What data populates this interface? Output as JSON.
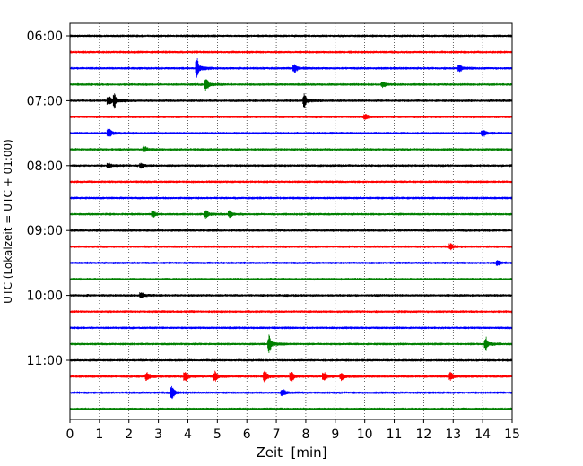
{
  "chart_data": {
    "type": "line",
    "title": "",
    "xlabel": "Zeit  [min]",
    "ylabel": "UTC (Lokalzeit = UTC + 01:00)",
    "xlim": [
      0,
      15
    ],
    "x_ticks": [
      0,
      1,
      2,
      3,
      4,
      5,
      6,
      7,
      8,
      9,
      10,
      11,
      12,
      13,
      14,
      15
    ],
    "y_tick_labels": [
      "06:00",
      "07:00",
      "08:00",
      "09:00",
      "10:00",
      "11:00"
    ],
    "grid": "vertical-dotted",
    "trace_colors": [
      "#000000",
      "#ff0000",
      "#0000ff",
      "#008000"
    ],
    "row_minutes_each": 15,
    "rows": [
      {
        "start": "06:00",
        "events": []
      },
      {
        "start": "06:15",
        "events": []
      },
      {
        "start": "06:30",
        "events": [
          {
            "t": 4.3,
            "amp": 1.4
          },
          {
            "t": 7.6,
            "amp": 0.5
          },
          {
            "t": 13.2,
            "amp": 0.45
          }
        ]
      },
      {
        "start": "06:45",
        "events": [
          {
            "t": 4.6,
            "amp": 0.7
          },
          {
            "t": 10.6,
            "amp": 0.35
          }
        ]
      },
      {
        "start": "07:00",
        "events": [
          {
            "t": 1.3,
            "amp": 0.55
          },
          {
            "t": 1.5,
            "amp": 0.9
          },
          {
            "t": 7.95,
            "amp": 1.0
          }
        ]
      },
      {
        "start": "07:15",
        "events": [
          {
            "t": 10.0,
            "amp": 0.3
          }
        ]
      },
      {
        "start": "07:30",
        "events": [
          {
            "t": 1.3,
            "amp": 0.55
          },
          {
            "t": 14.0,
            "amp": 0.4
          }
        ]
      },
      {
        "start": "07:45",
        "events": [
          {
            "t": 2.5,
            "amp": 0.35
          }
        ]
      },
      {
        "start": "08:00",
        "events": [
          {
            "t": 1.3,
            "amp": 0.3
          },
          {
            "t": 2.4,
            "amp": 0.3
          }
        ]
      },
      {
        "start": "08:15",
        "events": []
      },
      {
        "start": "08:30",
        "events": []
      },
      {
        "start": "08:45",
        "events": [
          {
            "t": 2.8,
            "amp": 0.35
          },
          {
            "t": 4.6,
            "amp": 0.45
          },
          {
            "t": 5.4,
            "amp": 0.35
          }
        ]
      },
      {
        "start": "09:00",
        "events": []
      },
      {
        "start": "09:15",
        "events": [
          {
            "t": 12.9,
            "amp": 0.35
          }
        ]
      },
      {
        "start": "09:30",
        "events": [
          {
            "t": 14.5,
            "amp": 0.3
          }
        ]
      },
      {
        "start": "09:45",
        "events": []
      },
      {
        "start": "10:00",
        "events": [
          {
            "t": 2.4,
            "amp": 0.35
          }
        ]
      },
      {
        "start": "10:15",
        "events": []
      },
      {
        "start": "10:30",
        "events": []
      },
      {
        "start": "10:45",
        "events": [
          {
            "t": 6.75,
            "amp": 1.2
          },
          {
            "t": 14.1,
            "amp": 0.85
          }
        ]
      },
      {
        "start": "11:00",
        "events": []
      },
      {
        "start": "11:15",
        "events": [
          {
            "t": 2.6,
            "amp": 0.5
          },
          {
            "t": 3.9,
            "amp": 0.6
          },
          {
            "t": 4.9,
            "amp": 0.6
          },
          {
            "t": 6.6,
            "amp": 0.6
          },
          {
            "t": 7.5,
            "amp": 0.55
          },
          {
            "t": 8.6,
            "amp": 0.5
          },
          {
            "t": 9.2,
            "amp": 0.45
          },
          {
            "t": 12.9,
            "amp": 0.45
          }
        ]
      },
      {
        "start": "11:30",
        "events": [
          {
            "t": 3.45,
            "amp": 0.75
          },
          {
            "t": 7.2,
            "amp": 0.4
          }
        ]
      },
      {
        "start": "11:45",
        "events": []
      }
    ]
  }
}
